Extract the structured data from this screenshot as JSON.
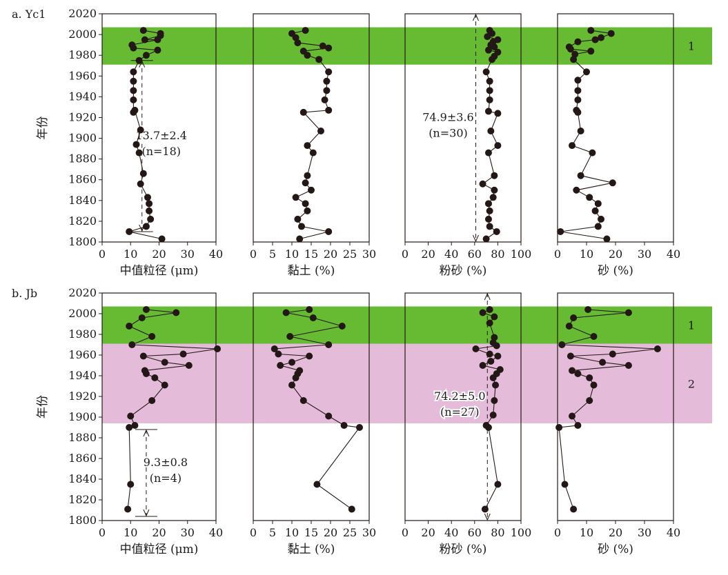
{
  "colors": {
    "zone1": "#66bb33",
    "zone2": "#e4bbd9",
    "marker": "#231815",
    "line": "#231815",
    "frame": "#231815"
  },
  "chart_data": [
    {
      "type": "line",
      "row_label": "a. Yc1",
      "y_axis_label": "年份",
      "ylim": [
        1800,
        2020
      ],
      "y_ticks": [
        "1800",
        "1820",
        "1840",
        "1860",
        "1880",
        "1900",
        "1920",
        "1940",
        "1960",
        "1980",
        "2000",
        "2020"
      ],
      "zones": [
        {
          "label": "1",
          "y_from": 1971,
          "y_to": 2007
        }
      ],
      "panels": [
        {
          "xlabel": "中值粒径 (μm)",
          "xlim": [
            0,
            40
          ],
          "x_ticks": [
            "0",
            "10",
            "20",
            "30",
            "40"
          ],
          "points": [
            [
              14.5,
              2004
            ],
            [
              20.5,
              2001
            ],
            [
              20.5,
              1999
            ],
            [
              15,
              1995
            ],
            [
              19.5,
              1995
            ],
            [
              10.5,
              1990
            ],
            [
              11,
              1987
            ],
            [
              19.5,
              1985
            ],
            [
              15.5,
              1980
            ],
            [
              13,
              1975
            ],
            [
              11,
              1964
            ],
            [
              11,
              1955
            ],
            [
              11,
              1946
            ],
            [
              11,
              1937
            ],
            [
              11,
              1925
            ],
            [
              11.5,
              1927
            ],
            [
              13.5,
              1908
            ],
            [
              12,
              1894
            ],
            [
              13,
              1886
            ],
            [
              14.5,
              1866
            ],
            [
              13.5,
              1856
            ],
            [
              16,
              1843
            ],
            [
              16.5,
              1837
            ],
            [
              16.5,
              1830
            ],
            [
              17,
              1822
            ],
            [
              15.5,
              1815
            ],
            [
              9.5,
              1810
            ],
            [
              21,
              1803
            ]
          ],
          "mean_annotation": {
            "value": "13.7±2.4",
            "n_text": "(n=18)",
            "x": 14,
            "y_from": 1810,
            "y_to": 1975
          }
        },
        {
          "xlabel": "黏土 (%)",
          "xlim": [
            0,
            30
          ],
          "x_ticks": [
            "0",
            "5",
            "10",
            "15",
            "20",
            "25",
            "30"
          ],
          "points": [
            [
              13.5,
              2004
            ],
            [
              10,
              2001
            ],
            [
              11,
              1997
            ],
            [
              11.5,
              1992
            ],
            [
              18,
              1989
            ],
            [
              19.5,
              1987
            ],
            [
              13,
              1984
            ],
            [
              14,
              1980
            ],
            [
              17,
              1976
            ],
            [
              19.5,
              1964
            ],
            [
              19,
              1955
            ],
            [
              19,
              1946
            ],
            [
              18.5,
              1937
            ],
            [
              19.5,
              1927
            ],
            [
              13,
              1925
            ],
            [
              17.5,
              1907
            ],
            [
              14,
              1893
            ],
            [
              15.5,
              1886
            ],
            [
              14,
              1864
            ],
            [
              13.5,
              1857
            ],
            [
              15,
              1850
            ],
            [
              11,
              1843
            ],
            [
              13.5,
              1837
            ],
            [
              14,
              1830
            ],
            [
              11.5,
              1822
            ],
            [
              12.5,
              1815
            ],
            [
              19.5,
              1810
            ],
            [
              12,
              1803
            ]
          ]
        },
        {
          "xlabel": "粉砂 (%)",
          "xlim": [
            0,
            100
          ],
          "x_ticks": [
            "0",
            "20",
            "40",
            "60",
            "80",
            "100"
          ],
          "points": [
            [
              73,
              2004
            ],
            [
              75,
              2001
            ],
            [
              71,
              1998
            ],
            [
              80,
              1995
            ],
            [
              76,
              1993
            ],
            [
              74,
              1990
            ],
            [
              77,
              1988
            ],
            [
              72,
              1985
            ],
            [
              80,
              1983
            ],
            [
              77,
              1979
            ],
            [
              75,
              1976
            ],
            [
              70,
              1964
            ],
            [
              73,
              1955
            ],
            [
              73,
              1946
            ],
            [
              73,
              1937
            ],
            [
              72,
              1926
            ],
            [
              80,
              1924
            ],
            [
              74,
              1907
            ],
            [
              80,
              1893
            ],
            [
              72,
              1886
            ],
            [
              77,
              1864
            ],
            [
              67,
              1856
            ],
            [
              77,
              1850
            ],
            [
              76,
              1843
            ],
            [
              72,
              1837
            ],
            [
              73,
              1830
            ],
            [
              72,
              1822
            ],
            [
              73,
              1815
            ],
            [
              79,
              1810
            ],
            [
              70,
              1803
            ]
          ],
          "mean_annotation": {
            "value": "74.9±3.6",
            "n_text": "(n=30)",
            "x": 61,
            "y_from": 1800,
            "y_to": 2020
          }
        },
        {
          "xlabel": "砂 (%)",
          "xlim": [
            0,
            40
          ],
          "x_ticks": [
            "0",
            "10",
            "20",
            "30",
            "40"
          ],
          "points": [
            [
              11.5,
              2004
            ],
            [
              18.5,
              2001
            ],
            [
              15,
              1997
            ],
            [
              13,
              1995
            ],
            [
              7,
              1993
            ],
            [
              4,
              1988
            ],
            [
              4.5,
              1986
            ],
            [
              11.5,
              1984
            ],
            [
              6,
              1981
            ],
            [
              5.5,
              1976
            ],
            [
              10,
              1964
            ],
            [
              7,
              1956
            ],
            [
              7,
              1946
            ],
            [
              7,
              1937
            ],
            [
              6.5,
              1927
            ],
            [
              7,
              1925
            ],
            [
              8,
              1907
            ],
            [
              5,
              1893
            ],
            [
              12,
              1886
            ],
            [
              8,
              1864
            ],
            [
              19,
              1857
            ],
            [
              6.5,
              1850
            ],
            [
              11,
              1843
            ],
            [
              14,
              1837
            ],
            [
              13,
              1830
            ],
            [
              15,
              1822
            ],
            [
              14,
              1815
            ],
            [
              1,
              1810
            ],
            [
              17,
              1803
            ]
          ]
        }
      ]
    },
    {
      "type": "line",
      "row_label": "b. Jb",
      "y_axis_label": "年份",
      "ylim": [
        1800,
        2020
      ],
      "y_ticks": [
        "1800",
        "1820",
        "1840",
        "1860",
        "1880",
        "1900",
        "1920",
        "1940",
        "1960",
        "1980",
        "2000",
        "2020"
      ],
      "zones": [
        {
          "label": "1",
          "y_from": 1971,
          "y_to": 2007
        },
        {
          "label": "2",
          "y_from": 1894,
          "y_to": 1971
        }
      ],
      "panels": [
        {
          "xlabel": "中值粒径 (μm)",
          "xlim": [
            0,
            40
          ],
          "x_ticks": [
            "0",
            "10",
            "20",
            "30",
            "40"
          ],
          "points": [
            [
              15.5,
              2004
            ],
            [
              26,
              2001
            ],
            [
              14,
              1996
            ],
            [
              9.5,
              1988
            ],
            [
              17.5,
              1978
            ],
            [
              10.5,
              1970
            ],
            [
              40.5,
              1966
            ],
            [
              28.5,
              1961
            ],
            [
              14.5,
              1959
            ],
            [
              22,
              1953
            ],
            [
              30.5,
              1950
            ],
            [
              15,
              1945
            ],
            [
              15.5,
              1942
            ],
            [
              18.5,
              1938
            ],
            [
              22,
              1931
            ],
            [
              17.5,
              1916
            ],
            [
              10,
              1901
            ],
            [
              11.5,
              1892
            ],
            [
              9.5,
              1890
            ],
            [
              10,
              1835
            ],
            [
              9,
              1811
            ]
          ],
          "mean_annotation": {
            "value": "9.3±0.8",
            "n_text": "(n=4)",
            "x": 15.5,
            "y_from": 1804,
            "y_to": 1888
          }
        },
        {
          "xlabel": "黏土 (%)",
          "xlim": [
            0,
            30
          ],
          "x_ticks": [
            "0",
            "5",
            "10",
            "15",
            "20",
            "25",
            "30"
          ],
          "points": [
            [
              14.5,
              2004
            ],
            [
              8.5,
              2001
            ],
            [
              15.5,
              1996
            ],
            [
              23,
              1988
            ],
            [
              9.5,
              1978
            ],
            [
              19.5,
              1970
            ],
            [
              5.5,
              1966
            ],
            [
              6.5,
              1961
            ],
            [
              14.5,
              1959
            ],
            [
              10,
              1953
            ],
            [
              7,
              1950
            ],
            [
              12,
              1945
            ],
            [
              11.5,
              1942
            ],
            [
              11,
              1938
            ],
            [
              10,
              1931
            ],
            [
              13,
              1916
            ],
            [
              19.5,
              1901
            ],
            [
              23.5,
              1892
            ],
            [
              27.5,
              1890
            ],
            [
              16.5,
              1835
            ],
            [
              25.5,
              1811
            ]
          ]
        },
        {
          "xlabel": "粉砂 (%)",
          "xlim": [
            0,
            100
          ],
          "x_ticks": [
            "0",
            "20",
            "40",
            "60",
            "80",
            "100"
          ],
          "points": [
            [
              73,
              2004
            ],
            [
              67,
              2001
            ],
            [
              77,
              1997
            ],
            [
              73,
              1991
            ],
            [
              77,
              1977
            ],
            [
              76,
              1972
            ],
            [
              79,
              1969
            ],
            [
              61,
              1966
            ],
            [
              73,
              1961
            ],
            [
              80,
              1959
            ],
            [
              74,
              1954
            ],
            [
              67,
              1950
            ],
            [
              82,
              1946
            ],
            [
              79,
              1942
            ],
            [
              76,
              1938
            ],
            [
              78,
              1931
            ],
            [
              77,
              1916
            ],
            [
              76,
              1902
            ],
            [
              70,
              1892
            ],
            [
              72,
              1890
            ],
            [
              80,
              1835
            ],
            [
              69,
              1811
            ]
          ],
          "mean_annotation": {
            "value": "74.2±5.0",
            "n_text": "(n=27)",
            "x": 71,
            "y_from": 1800,
            "y_to": 2020
          }
        },
        {
          "xlabel": "砂 (%)",
          "xlim": [
            0,
            40
          ],
          "x_ticks": [
            "0",
            "10",
            "20",
            "30",
            "40"
          ],
          "points": [
            [
              10.5,
              2004
            ],
            [
              24.5,
              2001
            ],
            [
              5.5,
              1996
            ],
            [
              4,
              1988
            ],
            [
              12.5,
              1978
            ],
            [
              1.5,
              1970
            ],
            [
              34.5,
              1966
            ],
            [
              19,
              1961
            ],
            [
              4.5,
              1959
            ],
            [
              15.5,
              1953
            ],
            [
              24.5,
              1950
            ],
            [
              5,
              1945
            ],
            [
              7,
              1942
            ],
            [
              11,
              1938
            ],
            [
              12.5,
              1931
            ],
            [
              11,
              1916
            ],
            [
              5,
              1901
            ],
            [
              7,
              1892
            ],
            [
              0.5,
              1890
            ],
            [
              2.5,
              1835
            ],
            [
              5.5,
              1811
            ]
          ]
        }
      ]
    }
  ]
}
